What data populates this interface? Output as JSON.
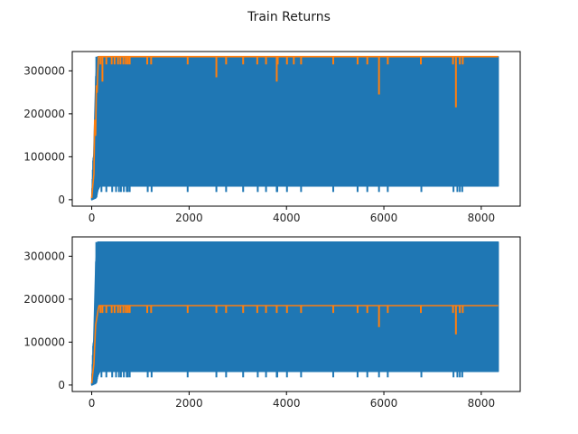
{
  "figure": {
    "title": "Train Returns"
  },
  "chart_data": [
    {
      "type": "line",
      "title": "",
      "xlabel": "",
      "ylabel": "",
      "xlim": [
        -400,
        8800
      ],
      "ylim": [
        -15000,
        345000
      ],
      "xticks": [
        0,
        2000,
        4000,
        6000,
        8000
      ],
      "yticks": [
        0,
        100000,
        200000,
        300000
      ],
      "xtick_labels": [
        "0",
        "2000",
        "4000",
        "6000",
        "8000"
      ],
      "ytick_labels": [
        "0",
        "100000",
        "200000",
        "300000"
      ],
      "grid": false,
      "legend": "none",
      "x_max": 8350,
      "series": [
        {
          "color": "#1f77b4",
          "style": "dense-oscillating",
          "upper_envelope": [
            [
              0,
              5000
            ],
            [
              25,
              95000
            ],
            [
              60,
              110000
            ],
            [
              90,
              333000
            ],
            [
              8350,
              333000
            ]
          ],
          "lower_envelope": [
            [
              0,
              0
            ],
            [
              100,
              5000
            ],
            [
              140,
              32000
            ],
            [
              8350,
              32000
            ]
          ],
          "low_spike_x": [
            200,
            300,
            420,
            500,
            560,
            600,
            660,
            720,
            740,
            780,
            1150,
            1230,
            1970,
            2560,
            2760,
            3110,
            3410,
            3580,
            3800,
            3810,
            4010,
            4300,
            4960,
            5460,
            5660,
            5900,
            6080,
            6770,
            7430,
            7510,
            7560,
            7610
          ],
          "low_spike_value": 18000
        },
        {
          "color": "#ff7f0e",
          "style": "envelope-max",
          "points": [
            [
              0,
              4000
            ],
            [
              20,
              30000
            ],
            [
              45,
              60000
            ],
            [
              60,
              185000
            ],
            [
              80,
              150000
            ],
            [
              95,
              265000
            ],
            [
              110,
              250000
            ],
            [
              125,
              300000
            ],
            [
              140,
              333000
            ],
            [
              8350,
              333000
            ]
          ],
          "dips": [
            [
              180,
              315000
            ],
            [
              220,
              275000
            ],
            [
              300,
              315000
            ],
            [
              410,
              315000
            ],
            [
              470,
              315000
            ],
            [
              540,
              315000
            ],
            [
              590,
              315000
            ],
            [
              650,
              315000
            ],
            [
              700,
              315000
            ],
            [
              740,
              315000
            ],
            [
              780,
              315000
            ],
            [
              1140,
              315000
            ],
            [
              1220,
              315000
            ],
            [
              1970,
              315000
            ],
            [
              2560,
              285000
            ],
            [
              2760,
              315000
            ],
            [
              3110,
              315000
            ],
            [
              3400,
              315000
            ],
            [
              3580,
              315000
            ],
            [
              3800,
              275000
            ],
            [
              3820,
              315000
            ],
            [
              4010,
              315000
            ],
            [
              4150,
              315000
            ],
            [
              4300,
              315000
            ],
            [
              4960,
              315000
            ],
            [
              5460,
              315000
            ],
            [
              5660,
              315000
            ],
            [
              5900,
              245000
            ],
            [
              6080,
              315000
            ],
            [
              6760,
              315000
            ],
            [
              7420,
              315000
            ],
            [
              7480,
              215000
            ],
            [
              7560,
              315000
            ],
            [
              7620,
              315000
            ]
          ]
        }
      ]
    },
    {
      "type": "line",
      "title": "",
      "xlabel": "",
      "ylabel": "",
      "xlim": [
        -400,
        8800
      ],
      "ylim": [
        -15000,
        345000
      ],
      "xticks": [
        0,
        2000,
        4000,
        6000,
        8000
      ],
      "yticks": [
        0,
        100000,
        200000,
        300000
      ],
      "xtick_labels": [
        "0",
        "2000",
        "4000",
        "6000",
        "8000"
      ],
      "ytick_labels": [
        "0",
        "100000",
        "200000",
        "300000"
      ],
      "grid": false,
      "legend": "none",
      "x_max": 8350,
      "series": [
        {
          "color": "#1f77b4",
          "style": "dense-oscillating",
          "upper_envelope": [
            [
              0,
              5000
            ],
            [
              25,
              95000
            ],
            [
              60,
              110000
            ],
            [
              90,
              333000
            ],
            [
              8350,
              333000
            ]
          ],
          "lower_envelope": [
            [
              0,
              0
            ],
            [
              100,
              5000
            ],
            [
              140,
              32000
            ],
            [
              8350,
              32000
            ]
          ],
          "low_spike_x": [
            200,
            300,
            420,
            500,
            560,
            600,
            660,
            720,
            740,
            780,
            1150,
            1230,
            1970,
            2560,
            2760,
            3110,
            3410,
            3580,
            3800,
            3810,
            4010,
            4300,
            4960,
            5460,
            5660,
            5900,
            6080,
            6770,
            7430,
            7510,
            7560,
            7610
          ],
          "low_spike_value": 18000
        },
        {
          "color": "#ff7f0e",
          "style": "mean",
          "points": [
            [
              0,
              4000
            ],
            [
              20,
              25000
            ],
            [
              45,
              50000
            ],
            [
              60,
              90000
            ],
            [
              80,
              140000
            ],
            [
              95,
              150000
            ],
            [
              110,
              160000
            ],
            [
              130,
              175000
            ],
            [
              150,
              185000
            ],
            [
              8350,
              185000
            ]
          ],
          "dips": [
            [
              180,
              168000
            ],
            [
              220,
              168000
            ],
            [
              300,
              168000
            ],
            [
              410,
              168000
            ],
            [
              470,
              168000
            ],
            [
              540,
              168000
            ],
            [
              590,
              168000
            ],
            [
              650,
              168000
            ],
            [
              700,
              168000
            ],
            [
              740,
              168000
            ],
            [
              780,
              168000
            ],
            [
              1140,
              168000
            ],
            [
              1220,
              168000
            ],
            [
              1970,
              168000
            ],
            [
              2560,
              168000
            ],
            [
              2760,
              168000
            ],
            [
              3110,
              168000
            ],
            [
              3400,
              168000
            ],
            [
              3580,
              168000
            ],
            [
              3800,
              168000
            ],
            [
              4010,
              168000
            ],
            [
              4300,
              168000
            ],
            [
              4960,
              168000
            ],
            [
              5460,
              168000
            ],
            [
              5660,
              168000
            ],
            [
              5900,
              135000
            ],
            [
              6080,
              168000
            ],
            [
              6760,
              168000
            ],
            [
              7420,
              168000
            ],
            [
              7480,
              118000
            ],
            [
              7560,
              168000
            ],
            [
              7620,
              168000
            ]
          ]
        }
      ]
    }
  ]
}
